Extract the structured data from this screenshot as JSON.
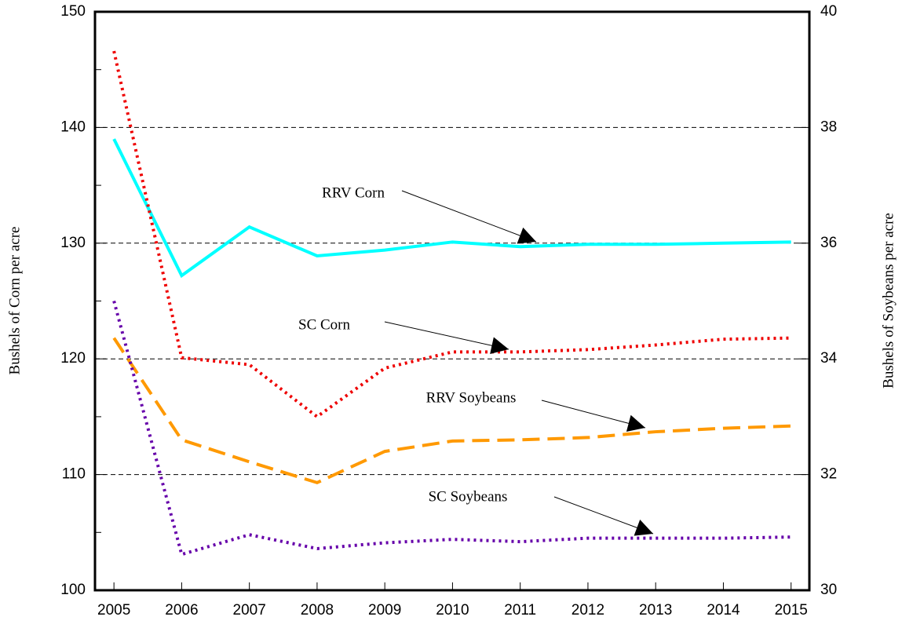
{
  "chart_data": {
    "type": "line",
    "x": [
      2005,
      2006,
      2007,
      2008,
      2009,
      2010,
      2011,
      2012,
      2013,
      2014,
      2015
    ],
    "xlim": [
      2004.72,
      2015.27
    ],
    "xticks": [
      2005,
      2006,
      2007,
      2008,
      2009,
      2010,
      2011,
      2012,
      2013,
      2014,
      2015
    ],
    "ylabel": "Bushels of Corn per acre",
    "y2label": "Bushels of Soybeans per acre",
    "ylim": [
      100,
      150
    ],
    "yticks": [
      100,
      110,
      120,
      130,
      140,
      150
    ],
    "yminorticks": [
      105,
      115,
      125,
      135,
      145
    ],
    "y2lim": [
      30,
      40
    ],
    "y2ticks": [
      30,
      32,
      34,
      36,
      38,
      40
    ],
    "grid": true,
    "series": [
      {
        "name": "RRV Corn",
        "color": "#00ffff",
        "style": "solid",
        "axis": "y",
        "values": [
          139.0,
          127.2,
          131.4,
          128.9,
          129.4,
          130.1,
          129.7,
          129.9,
          129.9,
          130.0,
          130.1
        ]
      },
      {
        "name": "SC Corn",
        "color": "#ee0000",
        "style": "dotted",
        "axis": "y",
        "values": [
          146.6,
          120.1,
          119.5,
          115.0,
          119.2,
          120.6,
          120.6,
          120.8,
          121.2,
          121.7,
          121.8
        ]
      },
      {
        "name": "RRV Soybeans",
        "color": "#ff9900",
        "style": "dashed",
        "axis": "y2",
        "values": [
          34.36,
          32.6,
          32.22,
          31.86,
          32.4,
          32.58,
          32.6,
          32.64,
          32.74,
          32.8,
          32.84
        ]
      },
      {
        "name": "SC Soybeans",
        "color": "#6600aa",
        "style": "dotted",
        "axis": "y2",
        "values": [
          35.0,
          30.62,
          30.96,
          30.72,
          30.82,
          30.88,
          30.84,
          30.9,
          30.9,
          30.9,
          30.92
        ]
      }
    ]
  }
}
